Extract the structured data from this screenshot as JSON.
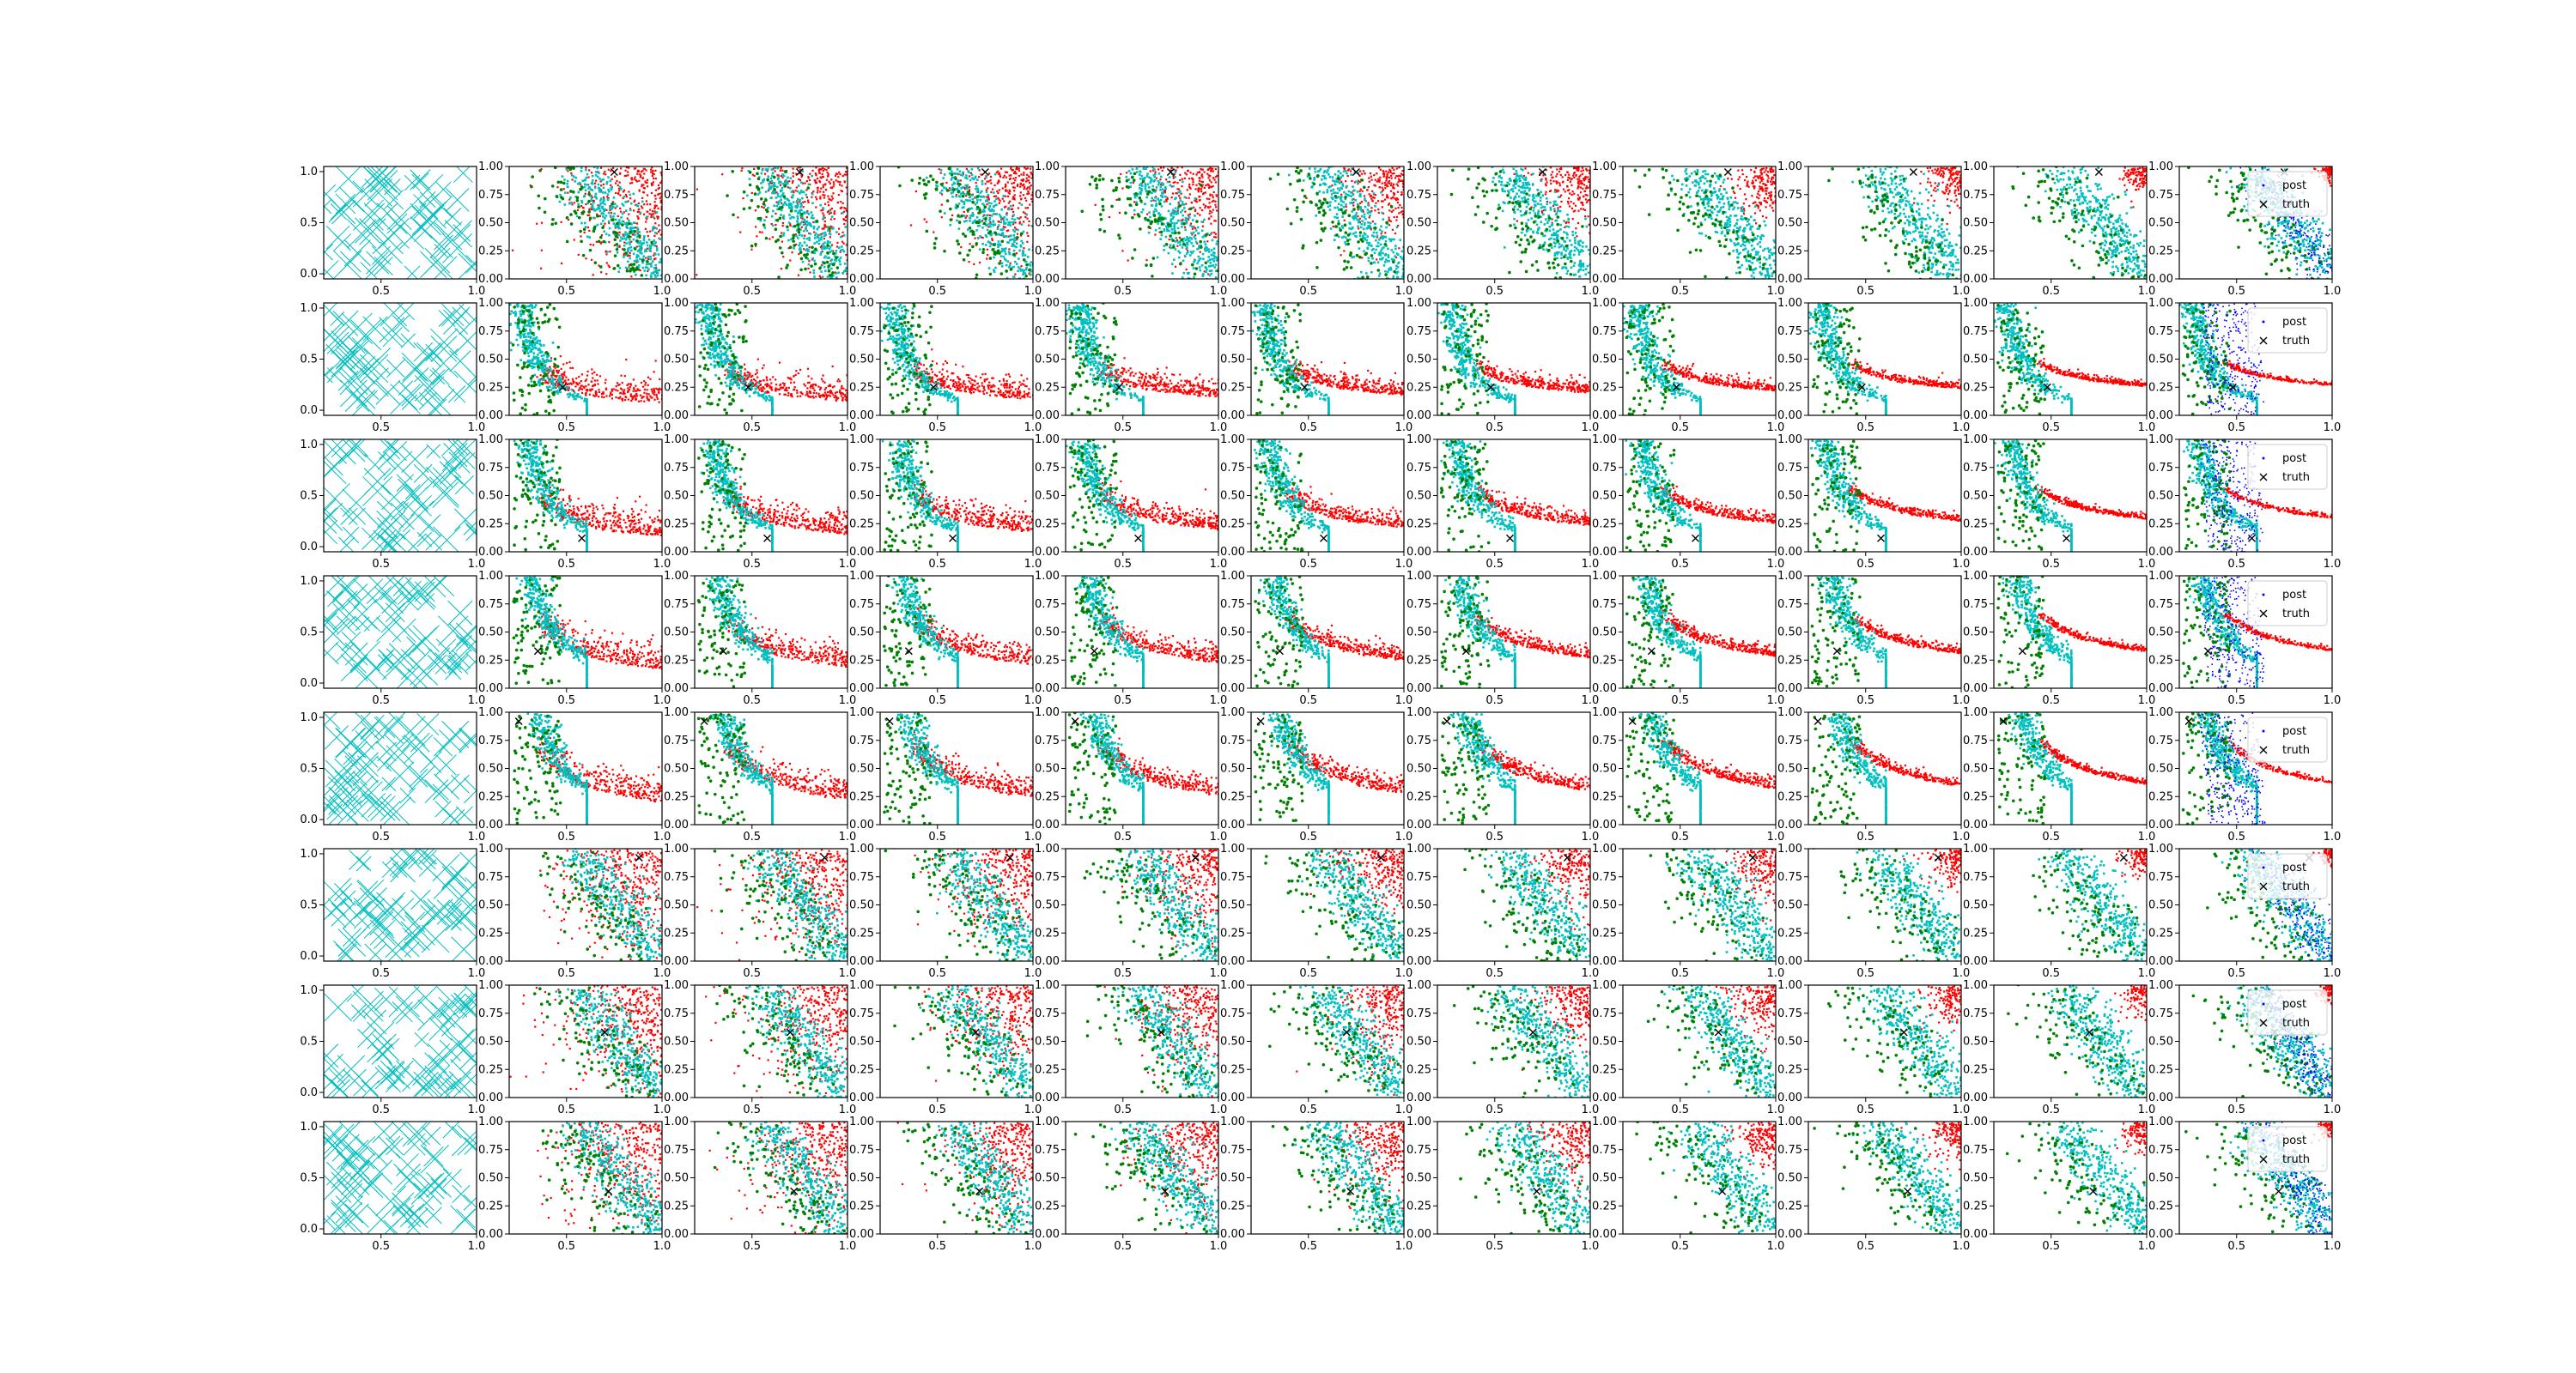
{
  "figure": {
    "rows": 8,
    "cols": 11,
    "colors": {
      "cyan": "#00bfbf",
      "green": "#008000",
      "red": "#ff0000",
      "blue": "#0000ff",
      "truth": "#000000",
      "axes": "#000000",
      "legend_bg": "#ffffff"
    }
  },
  "chart_data": {
    "type": "scatter",
    "layout": "grid of 8 rows x 11 columns of scatter subplots",
    "x_ticks_first_col": [
      "0.5",
      "1.0"
    ],
    "y_ticks_first_col": [
      "0.0",
      "0.5",
      "1.0"
    ],
    "x_ticks": [
      "0.5",
      "1.0"
    ],
    "y_ticks": [
      "0.00",
      "0.25",
      "0.50",
      "0.75",
      "1.00"
    ],
    "xlim_first_col": [
      0.2,
      1.0
    ],
    "ylim_first_col": [
      -0.05,
      1.05
    ],
    "xlim": [
      0.2,
      1.0
    ],
    "ylim": [
      0.0,
      1.0
    ],
    "legend": {
      "column": 11,
      "placement": "top-right",
      "entries": [
        "post",
        "truth"
      ]
    },
    "series": [
      {
        "name": "post",
        "color": "#0000ff",
        "marker": "dot"
      },
      {
        "name": "truth",
        "color": "#000000",
        "marker": "x"
      }
    ],
    "truth_points": [
      [
        0.75,
        0.95
      ],
      [
        0.48,
        0.25
      ],
      [
        0.58,
        0.12
      ],
      [
        0.35,
        0.33
      ],
      [
        0.25,
        0.92
      ],
      [
        0.88,
        0.92
      ],
      [
        0.7,
        0.58
      ],
      [
        0.72,
        0.38
      ]
    ],
    "row_types": [
      "corner",
      "curve",
      "curve",
      "curve",
      "curve",
      "corner",
      "corner",
      "corner"
    ]
  }
}
